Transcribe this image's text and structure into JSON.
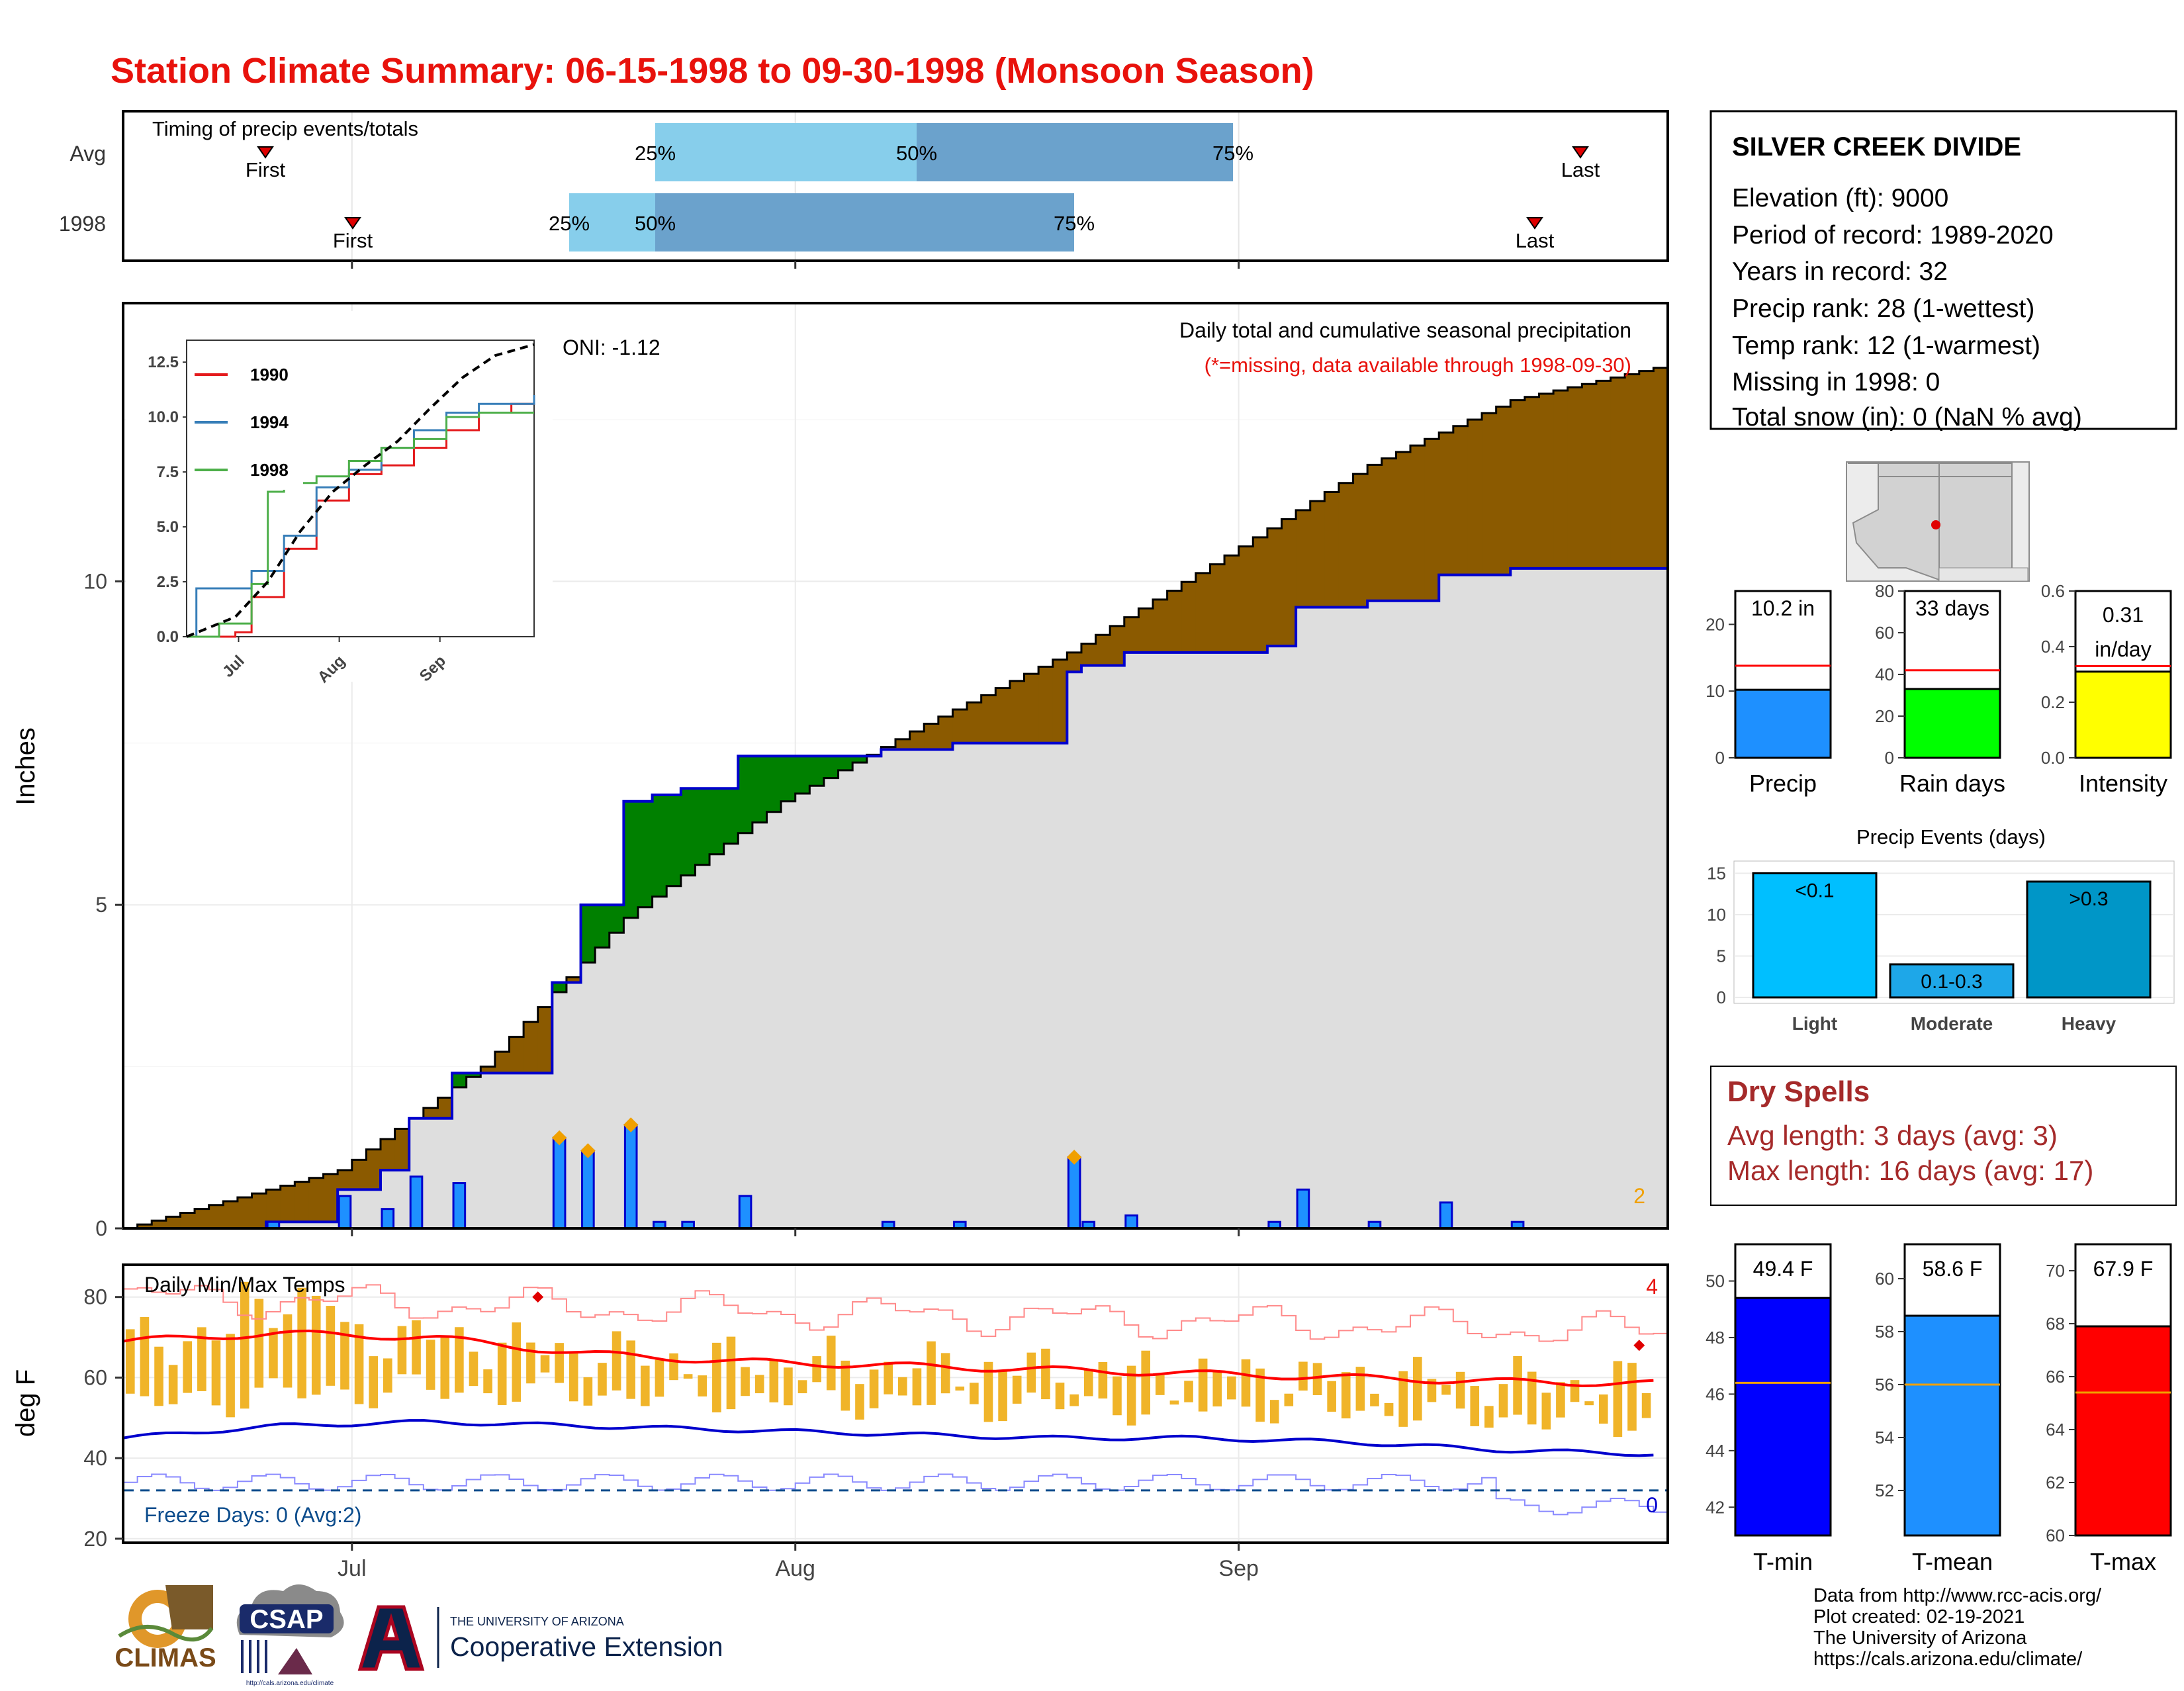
{
  "title": "Station Climate Summary: 06-15-1998 to 09-30-1998 (Monsoon Season)",
  "colors": {
    "title": "#e8120c",
    "station_bg_fill": "#dcdcdc",
    "surplus": "#008000",
    "deficit": "#8b5a00",
    "daily_bar": "#1e90ff",
    "cum_line": "#0000cd",
    "quartile_light": "#87ceeb",
    "quartile_dark": "#6ba2cc",
    "tmax": "#ff0000",
    "tmin": "#0000cd",
    "range_bar": "#f0b429",
    "dry_spells": "#a52a2a",
    "freeze_text": "#0b4c8c"
  },
  "timing_panel": {
    "label": "Timing of precip events/totals",
    "rows": [
      {
        "name": "Avg",
        "first": "First",
        "last": "Last",
        "p25": "25%",
        "p50": "50%",
        "p75": "75%"
      },
      {
        "name": "1998",
        "first": "First",
        "last": "Last",
        "p25": "25%",
        "p50": "50%",
        "p75": "75%"
      }
    ]
  },
  "main_chart": {
    "caption": "Daily total and cumulative seasonal precipitation",
    "missing_note": "(*=missing, data available through 1998-09-30)",
    "oni": "ONI: -1.12",
    "ylabel": "Inches",
    "ytick_labels": [
      "0",
      "5",
      "10"
    ],
    "xtick_labels": [
      "Jul",
      "Aug",
      "Sep"
    ],
    "corner_count": "2"
  },
  "inset": {
    "legend": [
      "1990",
      "1994",
      "1998"
    ],
    "ytick_labels": [
      "0.0",
      "2.5",
      "5.0",
      "7.5",
      "10.0",
      "12.5"
    ],
    "xtick_labels": [
      "Jul",
      "Aug",
      "Sep"
    ]
  },
  "temp_chart": {
    "label": "Daily Min/Max Temps",
    "ylabel": "deg F",
    "ytick_labels": [
      "20",
      "40",
      "60",
      "80"
    ],
    "freeze_label": "Freeze Days: 0 (Avg:2)",
    "count_high": "4",
    "count_low": "0"
  },
  "station": {
    "name": "SILVER CREEK DIVIDE",
    "elevation": "Elevation (ft): 9000",
    "period": "Period of record: 1989-2020",
    "years": "Years in record: 32",
    "precip_rank": "Precip rank: 28 (1-wettest)",
    "temp_rank": "Temp rank: 12 (1-warmest)",
    "missing": "Missing in 1998: 0",
    "snow": "Total snow (in): 0 (NaN % avg)"
  },
  "summary_bars": [
    {
      "label": "Precip",
      "value_label": "10.2 in",
      "value_label2": "",
      "value": 10.2,
      "avg": 13.8,
      "ymax": 25,
      "ticks": [
        "0",
        "10",
        "20"
      ],
      "color": "#1e90ff"
    },
    {
      "label": "Rain days",
      "value_label": "33 days",
      "value_label2": "",
      "value": 33,
      "avg": 42,
      "ymax": 80,
      "ticks": [
        "0",
        "20",
        "40",
        "60",
        "80"
      ],
      "color": "#00ff00"
    },
    {
      "label": "Intensity",
      "value_label": "0.31",
      "value_label2": "in/day",
      "value": 0.31,
      "avg": 0.33,
      "ymax": 0.6,
      "ticks": [
        "0.0",
        "0.2",
        "0.4",
        "0.6"
      ],
      "color": "#ffff00"
    }
  ],
  "precip_events": {
    "title": "Precip Events (days)",
    "categories": [
      "Light",
      "Moderate",
      "Heavy"
    ],
    "bar_labels": [
      "<0.1",
      "0.1-0.3",
      ">0.3"
    ],
    "values": [
      15,
      4,
      14
    ],
    "colors": [
      "#00bfff",
      "#1ea7e8",
      "#0096c7"
    ],
    "ytick_labels": [
      "0",
      "5",
      "10",
      "15"
    ]
  },
  "dry_spells": {
    "title": "Dry Spells",
    "avg": "Avg length: 3 days (avg: 3)",
    "max": "Max length: 16 days (avg: 17)"
  },
  "temp_bars": [
    {
      "label": "T-min",
      "value_label": "49.4 F",
      "value": 49.4,
      "avg": 46.4,
      "ymin": 41,
      "ymax": 51.3,
      "ticks": [
        "42",
        "44",
        "46",
        "48",
        "50"
      ],
      "color": "#0000ff"
    },
    {
      "label": "T-mean",
      "value_label": "58.6 F",
      "value": 58.6,
      "avg": 56.0,
      "ymin": 50.3,
      "ymax": 61.3,
      "ticks": [
        "52",
        "54",
        "56",
        "58",
        "60"
      ],
      "color": "#1e90ff"
    },
    {
      "label": "T-max",
      "value_label": "67.9 F",
      "value": 67.9,
      "avg": 65.4,
      "ymin": 60,
      "ymax": 71,
      "ticks": [
        "60",
        "62",
        "64",
        "66",
        "68",
        "70"
      ],
      "color": "#ff0000"
    }
  ],
  "footer": {
    "data_source": "Data from http://www.rcc-acis.org/",
    "created": "Plot created: 02-19-2021",
    "org": "The University of Arizona",
    "url": "https://cals.arizona.edu/climate/",
    "logo_climas": "CLIMAS",
    "logo_csap": "CSAP",
    "logo_csap_url": "http://cals.arizona.edu/climate",
    "ua_small": "THE UNIVERSITY OF ARIZONA",
    "ua_big": "Cooperative Extension"
  },
  "chart_data": [
    {
      "type": "area",
      "title": "Daily total and cumulative seasonal precipitation",
      "ylabel": "Inches",
      "ylim": [
        0,
        14.3
      ],
      "x_range": [
        "1998-06-15",
        "1998-09-30"
      ],
      "series": [
        {
          "name": "1998",
          "x": [
            "06-15",
            "06-25",
            "06-30",
            "07-03",
            "07-05",
            "07-08",
            "07-12",
            "07-15",
            "07-17",
            "07-20",
            "07-22",
            "07-24",
            "07-28",
            "08-03",
            "08-07",
            "08-12",
            "08-20",
            "08-21",
            "08-24",
            "08-25",
            "09-03",
            "09-05",
            "09-10",
            "09-15",
            "09-20",
            "09-30"
          ],
          "values": [
            0,
            0.1,
            0.6,
            0.9,
            1.7,
            2.4,
            2.4,
            3.8,
            5.0,
            6.6,
            6.7,
            6.8,
            7.3,
            7.3,
            7.4,
            7.5,
            8.6,
            8.7,
            8.9,
            8.9,
            9.0,
            9.6,
            9.7,
            10.1,
            10.2,
            10.2
          ]
        },
        {
          "name": "Average",
          "x": [
            "06-15",
            "06-30",
            "07-10",
            "07-20",
            "07-31",
            "08-10",
            "08-20",
            "08-31",
            "09-10",
            "09-20",
            "09-30"
          ],
          "values": [
            0,
            0.9,
            2.5,
            4.8,
            6.6,
            7.8,
            8.9,
            10.4,
            11.8,
            12.8,
            13.3
          ]
        }
      ]
    },
    {
      "type": "line",
      "title": "",
      "ylim": [
        0,
        13.5
      ],
      "series": [
        {
          "name": "1990",
          "x": [
            0,
            15,
            20,
            30,
            40,
            50,
            60,
            70,
            80,
            90,
            100,
            107
          ],
          "values": [
            0,
            0.2,
            1.8,
            4.0,
            6.2,
            7.4,
            7.8,
            8.6,
            9.4,
            10.2,
            10.6,
            11.0
          ]
        },
        {
          "name": "1994",
          "x": [
            0,
            3,
            15,
            20,
            30,
            40,
            50,
            60,
            70,
            80,
            90,
            107
          ],
          "values": [
            0,
            2.2,
            2.2,
            3.0,
            4.6,
            6.8,
            7.6,
            8.6,
            9.4,
            10.2,
            10.6,
            11.0
          ]
        },
        {
          "name": "1998",
          "x": [
            0,
            10,
            20,
            25,
            30,
            40,
            50,
            60,
            70,
            80,
            90,
            107
          ],
          "values": [
            0,
            0.6,
            2.4,
            6.6,
            7.0,
            7.3,
            8.0,
            8.6,
            9.0,
            10.0,
            10.2,
            10.2
          ]
        },
        {
          "name": "Average",
          "x": [
            0,
            15,
            25,
            35,
            45,
            55,
            65,
            75,
            85,
            95,
            107
          ],
          "values": [
            0,
            0.9,
            2.5,
            4.8,
            6.6,
            7.8,
            8.9,
            10.4,
            11.8,
            12.8,
            13.3
          ]
        }
      ]
    },
    {
      "type": "bar",
      "title": "Daily Min/Max Temps",
      "ylabel": "deg F",
      "ylim": [
        19,
        88
      ],
      "series": [
        {
          "name": "T-max average",
          "values": [
            69,
            71,
            70,
            66,
            64,
            63,
            62,
            61,
            60,
            59,
            58.5
          ]
        },
        {
          "name": "T-min average",
          "values": [
            45,
            48,
            49,
            48,
            47,
            46,
            45,
            45,
            44,
            42,
            41
          ]
        }
      ]
    },
    {
      "type": "bar",
      "title": "Precip Events (days)",
      "categories": [
        "Light",
        "Moderate",
        "Heavy"
      ],
      "values": [
        15,
        4,
        14
      ],
      "ylim": [
        0,
        15.6
      ]
    }
  ]
}
